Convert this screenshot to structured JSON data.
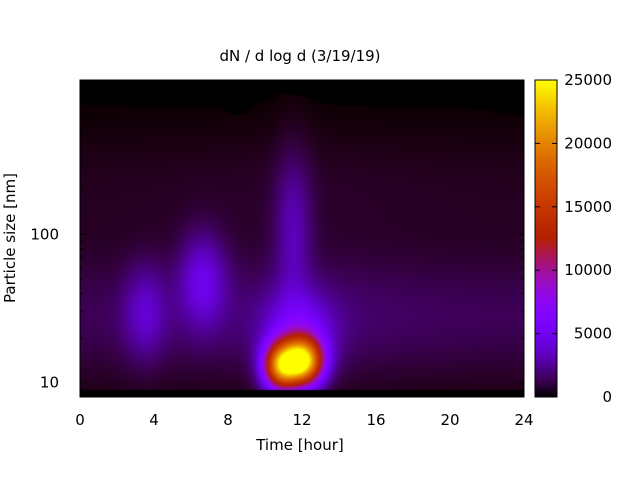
{
  "chart_data": {
    "type": "heatmap",
    "title": "dN / d log d (3/19/19)",
    "xlabel": "Time [hour]",
    "ylabel": "Particle size [nm]",
    "x_range": [
      0,
      24
    ],
    "x_ticks": [
      0,
      4,
      8,
      12,
      16,
      20,
      24
    ],
    "y_scale": "log",
    "y_range_nm": [
      8,
      1100
    ],
    "y_ticks": [
      10,
      100
    ],
    "colorbar": {
      "range": [
        0,
        25000
      ],
      "ticks": [
        0,
        5000,
        10000,
        15000,
        20000,
        25000
      ],
      "palette": "gnuplot black-purple-red-orange-yellow"
    },
    "grid": false,
    "features": [
      {
        "peak_time_h": 12.0,
        "peak_size_nm": 14,
        "peak_value": 23000
      },
      {
        "peak_time_h": 10.8,
        "peak_size_nm": 13,
        "peak_value": 17000
      },
      {
        "peak_time_h": 6.6,
        "peak_size_nm": 50,
        "peak_value": 3500
      },
      {
        "peak_time_h": 3.5,
        "peak_size_nm": 30,
        "peak_value": 2500
      },
      {
        "peak_time_h": 11.5,
        "peak_size_nm": 110,
        "peak_value": 2500
      }
    ],
    "no_data_above_nm": [
      {
        "time_h": 0,
        "size_nm": 780
      },
      {
        "time_h": 0.5,
        "size_nm": 740
      },
      {
        "time_h": 1,
        "size_nm": 760
      },
      {
        "time_h": 2.5,
        "size_nm": 740
      },
      {
        "time_h": 3.5,
        "size_nm": 720
      },
      {
        "time_h": 6,
        "size_nm": 730
      },
      {
        "time_h": 7.5,
        "size_nm": 720
      },
      {
        "time_h": 8.3,
        "size_nm": 640
      },
      {
        "time_h": 9,
        "size_nm": 660
      },
      {
        "time_h": 9.5,
        "size_nm": 760
      },
      {
        "time_h": 10.5,
        "size_nm": 850
      },
      {
        "time_h": 11,
        "size_nm": 900
      },
      {
        "time_h": 12,
        "size_nm": 860
      },
      {
        "time_h": 13,
        "size_nm": 780
      },
      {
        "time_h": 14,
        "size_nm": 740
      },
      {
        "time_h": 20,
        "size_nm": 720
      },
      {
        "time_h": 22,
        "size_nm": 690
      },
      {
        "time_h": 23,
        "size_nm": 650
      },
      {
        "time_h": 24,
        "size_nm": 630
      }
    ]
  }
}
